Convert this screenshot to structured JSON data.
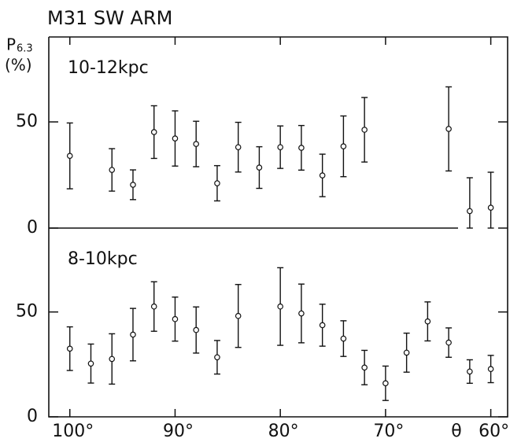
{
  "title": "M31  SW ARM",
  "y_label": {
    "symbol": "P",
    "subscript": "6.3",
    "unit": "(%)"
  },
  "x_axis": {
    "label": "θ",
    "xlim": [
      102,
      58.4
    ],
    "xticks": [
      {
        "value": 100,
        "label": "100°"
      },
      {
        "value": 90,
        "label": "90°"
      },
      {
        "value": 80,
        "label": "80°"
      },
      {
        "value": 70,
        "label": "70°"
      },
      {
        "value": 60,
        "label": "60°"
      }
    ]
  },
  "chart_data": [
    {
      "type": "scatter",
      "label": "10-12kpc",
      "ylim": [
        0,
        90
      ],
      "yticks": [
        0,
        50
      ],
      "x": [
        100,
        96,
        94,
        92,
        90,
        88,
        86,
        84,
        82,
        80,
        78,
        76,
        74,
        72,
        64,
        62,
        60
      ],
      "values": [
        34,
        27.4,
        20.4,
        45.2,
        42.2,
        39.6,
        21.1,
        38.1,
        28.5,
        38.1,
        37.8,
        24.8,
        38.5,
        46.3,
        46.7,
        8,
        9.6
      ],
      "err_low": [
        15.5,
        10,
        7,
        12.4,
        13,
        10.7,
        8.3,
        11.7,
        9.8,
        10,
        10.5,
        10,
        14.3,
        15.2,
        19.8,
        8,
        9.6
      ],
      "err_high": [
        15.5,
        10,
        7,
        12.4,
        13,
        10.7,
        8.3,
        11.7,
        9.8,
        10,
        10.5,
        10,
        14.3,
        15.2,
        19.8,
        15.7,
        16.7
      ]
    },
    {
      "type": "scatter",
      "label": "8-10kpc",
      "ylim": [
        0,
        90
      ],
      "yticks": [
        0,
        50
      ],
      "x": [
        100,
        98,
        96,
        94,
        92,
        90,
        88,
        86,
        84,
        80,
        78,
        76,
        74,
        72,
        70,
        68,
        66,
        64,
        62,
        60
      ],
      "values": [
        32.5,
        25.4,
        27.6,
        39.2,
        52.6,
        46.6,
        41.4,
        28.4,
        48.1,
        52.6,
        49.3,
        43.7,
        37.3,
        23.5,
        16,
        30.6,
        45.5,
        35.4,
        21.6,
        22.8
      ],
      "err_low": [
        10.4,
        9.3,
        12,
        12.5,
        11.8,
        10.5,
        11,
        8,
        15,
        18.5,
        14,
        10,
        8.5,
        8.2,
        8.2,
        9.3,
        9.3,
        7,
        5.6,
        6.5
      ],
      "err_high": [
        10.4,
        9.3,
        12,
        12.5,
        11.8,
        10.5,
        11,
        8,
        15,
        18.5,
        14,
        10,
        8.5,
        8.2,
        8.2,
        9.3,
        9.3,
        7,
        5.6,
        6.5
      ]
    }
  ]
}
